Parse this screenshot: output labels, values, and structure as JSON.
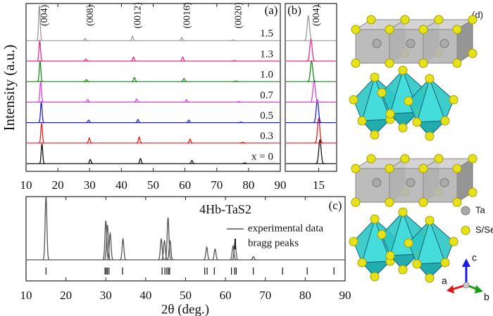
{
  "chart_data": [
    {
      "type": "line",
      "title": "(a)",
      "ylabel": "Intensity (a.u.)",
      "annotations": [
        "(004)",
        "(008)",
        "(0012)",
        "(0016)",
        "(0020)"
      ],
      "xlim": [
        10,
        90
      ],
      "xticks": [
        10,
        20,
        30,
        40,
        50,
        60,
        70,
        80,
        90
      ],
      "series": [
        {
          "name": "x = 0",
          "color": "#111111",
          "x": [
            15.0,
            30.2,
            46.0,
            62.2,
            78.8
          ],
          "values": [
            0.95,
            0.2,
            0.25,
            0.15,
            0.04
          ]
        },
        {
          "name": "0.3",
          "color": "#e8201c",
          "x": [
            14.9,
            29.9,
            45.6,
            61.6,
            78.2
          ],
          "values": [
            0.95,
            0.25,
            0.3,
            0.2,
            0.04
          ]
        },
        {
          "name": "0.5",
          "color": "#1f1fd6",
          "x": [
            14.8,
            29.7,
            45.2,
            61.2,
            77.6
          ],
          "values": [
            1.0,
            0.12,
            0.15,
            0.12,
            0.03
          ]
        },
        {
          "name": "0.7",
          "color": "#e040e0",
          "x": [
            14.6,
            29.4,
            44.8,
            60.5,
            77.0
          ],
          "values": [
            1.0,
            0.12,
            0.15,
            0.12,
            0.03
          ]
        },
        {
          "name": "1.0",
          "color": "#1a8a1a",
          "x": [
            14.4,
            29.0,
            44.1,
            59.7,
            76.0
          ],
          "values": [
            1.0,
            0.1,
            0.2,
            0.15,
            0.03
          ]
        },
        {
          "name": "1.3",
          "color": "#ee2a8c",
          "x": [
            14.3,
            28.8,
            43.8,
            59.3,
            75.6
          ],
          "values": [
            1.0,
            0.1,
            0.2,
            0.2,
            0.03
          ]
        },
        {
          "name": "1.5",
          "color": "#999999",
          "x": [
            14.2,
            28.6,
            43.5,
            59.0,
            75.2
          ],
          "values": [
            1.7,
            0.1,
            0.2,
            0.15,
            0.03
          ]
        }
      ]
    },
    {
      "type": "line",
      "title": "(b)",
      "annotations": [
        "(004)"
      ],
      "xlim": [
        12.4,
        16.4
      ],
      "xticks": [
        15
      ],
      "series": [
        {
          "color": "#111111",
          "x": [
            15.1
          ],
          "values": [
            1.15
          ]
        },
        {
          "color": "#e8201c",
          "x": [
            15.0
          ],
          "values": [
            1.2
          ]
        },
        {
          "color": "#1f1fd6",
          "x": [
            14.9
          ],
          "values": [
            1.1
          ]
        },
        {
          "color": "#e040e0",
          "x": [
            14.65
          ],
          "values": [
            1.05
          ]
        },
        {
          "color": "#1a8a1a",
          "x": [
            14.45
          ],
          "values": [
            1.0
          ]
        },
        {
          "color": "#ee2a8c",
          "x": [
            14.4
          ],
          "values": [
            1.1
          ]
        },
        {
          "color": "#999999",
          "x": [
            14.2
          ],
          "values": [
            1.2
          ]
        }
      ]
    },
    {
      "type": "line",
      "title": "(c)",
      "annotation": "4Hb-TaS2",
      "xlabel": "2θ (deg.)",
      "xlim": [
        10,
        90
      ],
      "xticks": [
        10,
        20,
        30,
        40,
        50,
        60,
        70,
        80,
        90
      ],
      "series": [
        {
          "name": "experimental data",
          "color": "#555555",
          "x": [
            15.0,
            30.0,
            30.4,
            31.1,
            34.3,
            43.9,
            44.7,
            45.6,
            46.1,
            55.3,
            57.4,
            61.9,
            62.4,
            67.0
          ],
          "values": [
            1.0,
            0.62,
            0.55,
            0.42,
            0.33,
            0.33,
            0.3,
            0.67,
            0.3,
            0.2,
            0.17,
            0.22,
            0.28,
            0.05
          ]
        }
      ],
      "bragg_peaks": {
        "name": "bragg peaks",
        "color": "#111111",
        "x": [
          15.0,
          29.8,
          30.1,
          30.4,
          30.8,
          34.2,
          44.1,
          44.8,
          45.3,
          45.7,
          46.0,
          54.8,
          55.4,
          57.2,
          61.5,
          62.3,
          62.7,
          67.0,
          74.3,
          80.5,
          87.2
        ]
      }
    }
  ],
  "structure": {
    "label": "(d)",
    "legend": [
      "Ta",
      "S/Se"
    ],
    "axes": [
      "a",
      "b",
      "c"
    ]
  }
}
